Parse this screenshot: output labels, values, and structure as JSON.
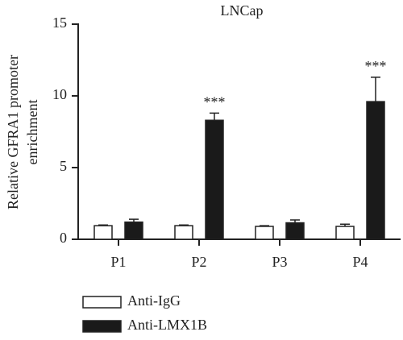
{
  "chart_data": {
    "type": "bar",
    "title": "LNCap",
    "y_label": [
      "Relative GFRA1 promoter",
      "enrichment"
    ],
    "categories": [
      "P1",
      "P2",
      "P3",
      "P4"
    ],
    "series": [
      {
        "name": "Anti-IgG",
        "color": "#ffffff",
        "values": [
          0.95,
          0.95,
          0.9,
          0.9
        ],
        "errors": [
          0.05,
          0.05,
          0.05,
          0.15
        ]
      },
      {
        "name": "Anti-LMX1B",
        "color": "#1a1a1a",
        "values": [
          1.2,
          8.3,
          1.15,
          9.6
        ],
        "errors": [
          0.2,
          0.5,
          0.2,
          1.7
        ]
      }
    ],
    "annotations": [
      {
        "text": "***",
        "category": "P2",
        "series": "Anti-LMX1B"
      },
      {
        "text": "***",
        "category": "P4",
        "series": "Anti-LMX1B"
      }
    ],
    "ylim": [
      0,
      15
    ],
    "yticks": [
      0,
      5,
      10,
      15
    ]
  }
}
